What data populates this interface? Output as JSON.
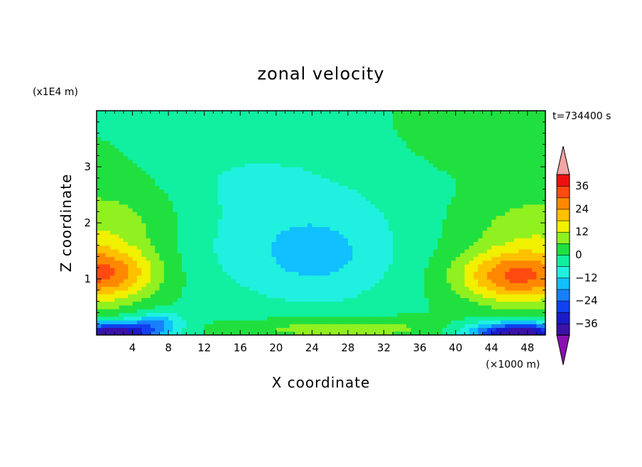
{
  "chart_data": {
    "type": "heatmap",
    "title": "zonal velocity",
    "xlabel": "X coordinate",
    "ylabel": "Z coordinate",
    "x_unit": "(×1000 m)",
    "y_unit": "(x1E4 m)",
    "time_label": "t=734400 s",
    "xlim": [
      0,
      50
    ],
    "ylim": [
      0,
      4
    ],
    "x_ticks": [
      4,
      8,
      12,
      16,
      20,
      24,
      28,
      32,
      36,
      40,
      44,
      48
    ],
    "y_ticks": [
      1,
      2,
      3
    ],
    "colorbar": {
      "ticks": [
        36,
        24,
        12,
        0,
        -12,
        -24,
        -36
      ],
      "levels": [
        -42,
        -36,
        -30,
        -24,
        -18,
        -12,
        -6,
        0,
        6,
        12,
        18,
        24,
        30,
        36,
        42
      ],
      "colors": [
        "#6a0e9e",
        "#3a12a8",
        "#1a1ac8",
        "#1040f0",
        "#1880f8",
        "#10c0ff",
        "#20f0e0",
        "#10f0a0",
        "#20e040",
        "#90f020",
        "#f0f000",
        "#ffc000",
        "#ff8800",
        "#ff4a10",
        "#ee1010",
        "#f4a4a4"
      ],
      "under_color": "#8a10b0",
      "over_color": "#f4a4a4"
    }
  }
}
